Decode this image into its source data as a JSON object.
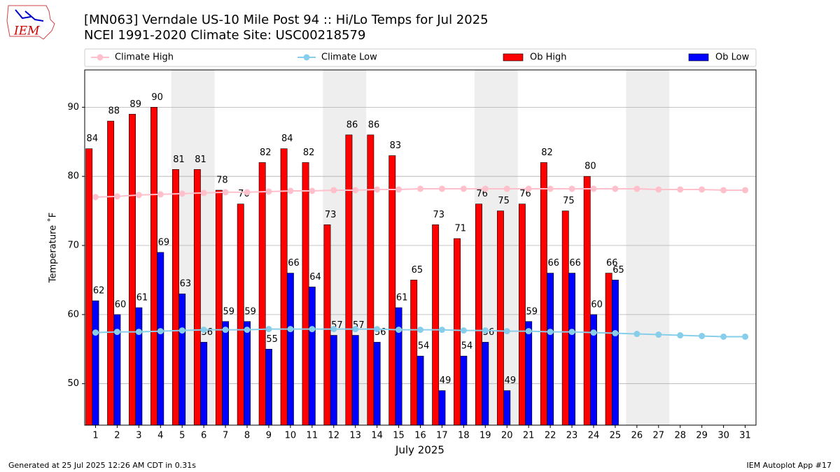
{
  "chart_data": {
    "type": "bar",
    "logo_text": "IEM",
    "title": "[MN063] Verndale US-10 Mile Post 94 :: Hi/Lo Temps for Jul 2025",
    "subtitle": "NCEI 1991-2020 Climate Site: USC00218579",
    "xlabel": "July 2025",
    "ylabel": "Temperature ˚F",
    "footer_left": "Generated at 25 Jul 2025 12:26 AM CDT in 0.31s",
    "footer_right": "IEM Autoplot App #17",
    "x": [
      1,
      2,
      3,
      4,
      5,
      6,
      7,
      8,
      9,
      10,
      11,
      12,
      13,
      14,
      15,
      16,
      17,
      18,
      19,
      20,
      21,
      22,
      23,
      24,
      25,
      26,
      27,
      28,
      29,
      30,
      31
    ],
    "xlim": [
      0.5,
      31.5
    ],
    "xticks": [
      1,
      2,
      3,
      4,
      5,
      6,
      7,
      8,
      9,
      10,
      11,
      12,
      13,
      14,
      15,
      16,
      17,
      18,
      19,
      20,
      21,
      22,
      23,
      24,
      25,
      26,
      27,
      28,
      29,
      30,
      31
    ],
    "ylim": [
      44,
      95.4
    ],
    "yticks": [
      50,
      60,
      70,
      80,
      90
    ],
    "grid": true,
    "weekend_shading": [
      [
        4.5,
        6.5
      ],
      [
        11.5,
        13.5
      ],
      [
        18.5,
        20.5
      ],
      [
        25.5,
        27.5
      ]
    ],
    "shading_color": "#eeeeee",
    "legend": "top",
    "series": [
      {
        "name": "Climate High",
        "type": "line",
        "color": "#ffc0cb",
        "values": [
          77.0,
          77.1,
          77.3,
          77.4,
          77.5,
          77.6,
          77.7,
          77.7,
          77.8,
          77.9,
          77.9,
          78.0,
          78.0,
          78.1,
          78.1,
          78.2,
          78.2,
          78.2,
          78.2,
          78.2,
          78.2,
          78.2,
          78.2,
          78.2,
          78.2,
          78.2,
          78.1,
          78.1,
          78.1,
          78.0,
          78.0
        ]
      },
      {
        "name": "Climate Low",
        "type": "line",
        "color": "#87ceeb",
        "values": [
          57.4,
          57.5,
          57.5,
          57.6,
          57.7,
          57.8,
          57.8,
          57.8,
          57.9,
          57.9,
          57.9,
          57.9,
          57.9,
          57.9,
          57.8,
          57.8,
          57.8,
          57.7,
          57.7,
          57.6,
          57.6,
          57.5,
          57.5,
          57.4,
          57.3,
          57.2,
          57.1,
          57.0,
          56.9,
          56.8,
          56.8
        ]
      },
      {
        "name": "Ob High",
        "type": "bar",
        "color": "#ff0000",
        "values": [
          84,
          88,
          89,
          90,
          81,
          81,
          78,
          76,
          82,
          84,
          82,
          73,
          86,
          86,
          83,
          65,
          73,
          71,
          76,
          75,
          76,
          82,
          75,
          80,
          66,
          null,
          null,
          null,
          null,
          null,
          null
        ]
      },
      {
        "name": "Ob Low",
        "type": "bar",
        "color": "#0000ff",
        "values": [
          62,
          60,
          61,
          69,
          63,
          56,
          59,
          59,
          55,
          66,
          64,
          57,
          57,
          56,
          61,
          54,
          49,
          54,
          56,
          49,
          59,
          66,
          66,
          60,
          65,
          null,
          null,
          null,
          null,
          null,
          null
        ]
      }
    ]
  }
}
